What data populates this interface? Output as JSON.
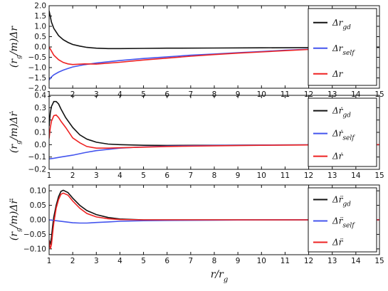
{
  "chart_data": [
    {
      "type": "line",
      "ylabel": "(r_g/m)Δr",
      "xlim": [
        1,
        15
      ],
      "ylim": [
        -2.0,
        2.0
      ],
      "x_ticks": [
        "1",
        "2",
        "3",
        "4",
        "5",
        "6",
        "7",
        "8",
        "9",
        "10",
        "11",
        "12",
        "13",
        "14",
        "15"
      ],
      "y_ticks": [
        "2.0",
        "1.5",
        "1.0",
        "0.5",
        "0.0",
        "−0.5",
        "−1.0",
        "−1.5",
        "−2.0"
      ],
      "legend": [
        "Δr_gd",
        "Δr_self",
        "Δr"
      ],
      "series": [
        {
          "name": "Δr_gd",
          "color": "#111111",
          "x": [
            1.0,
            1.1,
            1.2,
            1.4,
            1.6,
            1.8,
            2.0,
            2.3,
            2.6,
            3.0,
            3.5,
            4,
            5,
            6,
            8,
            10,
            12,
            13,
            15
          ],
          "y": [
            1.75,
            1.2,
            0.9,
            0.55,
            0.35,
            0.22,
            0.12,
            0.04,
            -0.02,
            -0.06,
            -0.08,
            -0.08,
            -0.07,
            -0.06,
            -0.05,
            -0.04,
            -0.03,
            -0.02,
            -0.02
          ]
        },
        {
          "name": "Δr_self",
          "color": "#4455ee",
          "x": [
            1.0,
            1.1,
            1.2,
            1.4,
            1.6,
            1.8,
            2.0,
            2.5,
            3.0,
            4,
            5,
            6,
            7,
            8,
            9,
            10,
            11,
            12,
            12.3
          ],
          "y": [
            -1.6,
            -1.45,
            -1.35,
            -1.22,
            -1.12,
            -1.04,
            -0.97,
            -0.86,
            -0.78,
            -0.66,
            -0.56,
            -0.48,
            -0.4,
            -0.34,
            -0.28,
            -0.22,
            -0.16,
            -0.11,
            -0.09
          ]
        },
        {
          "name": "Δr",
          "color": "#ee2222",
          "x": [
            1.0,
            1.1,
            1.2,
            1.4,
            1.6,
            1.8,
            2.0,
            2.5,
            3.0,
            4,
            5,
            6,
            7,
            8,
            9,
            10,
            11,
            12,
            12.3
          ],
          "y": [
            0.0,
            -0.2,
            -0.4,
            -0.62,
            -0.75,
            -0.82,
            -0.85,
            -0.82,
            -0.83,
            -0.74,
            -0.63,
            -0.54,
            -0.45,
            -0.37,
            -0.3,
            -0.24,
            -0.18,
            -0.12,
            -0.1
          ]
        }
      ]
    },
    {
      "type": "line",
      "ylabel": "(r_g/m)Δṙ",
      "xlim": [
        1,
        15
      ],
      "ylim": [
        -0.2,
        0.4
      ],
      "x_ticks": [
        "1",
        "2",
        "3",
        "4",
        "5",
        "6",
        "7",
        "8",
        "9",
        "10",
        "11",
        "12",
        "13",
        "14",
        "15"
      ],
      "y_ticks": [
        "0.4",
        "0.3",
        "0.2",
        "0.1",
        "0.0",
        "−0.1",
        "−0.2"
      ],
      "legend": [
        "Δṙ_gd",
        "Δṙ_self",
        "Δṙ"
      ],
      "series": [
        {
          "name": "Δṙ_gd",
          "color": "#111111",
          "x": [
            1.0,
            1.05,
            1.1,
            1.2,
            1.3,
            1.4,
            1.5,
            1.7,
            2.0,
            2.3,
            2.6,
            3.0,
            3.5,
            4,
            5,
            6,
            8,
            10,
            12,
            13,
            15
          ],
          "y": [
            0.15,
            0.26,
            0.31,
            0.35,
            0.35,
            0.33,
            0.29,
            0.22,
            0.14,
            0.08,
            0.045,
            0.02,
            0.005,
            0.0,
            -0.005,
            -0.006,
            -0.005,
            -0.003,
            -0.002,
            0.0,
            0.0
          ]
        },
        {
          "name": "Δṙ_self",
          "color": "#4455ee",
          "x": [
            1.0,
            1.2,
            1.5,
            2.0,
            2.5,
            3.0,
            4,
            5,
            6,
            8,
            10,
            12,
            13,
            15
          ],
          "y": [
            -0.115,
            -0.11,
            -0.1,
            -0.085,
            -0.065,
            -0.048,
            -0.028,
            -0.018,
            -0.012,
            -0.006,
            -0.003,
            -0.001,
            0.0,
            0.0
          ]
        },
        {
          "name": "Δṙ",
          "color": "#ee2222",
          "x": [
            1.0,
            1.05,
            1.1,
            1.2,
            1.3,
            1.4,
            1.5,
            1.7,
            2.0,
            2.3,
            2.6,
            3.0,
            3.5,
            4,
            5,
            6,
            8,
            10,
            12,
            13,
            15
          ],
          "y": [
            0.05,
            0.14,
            0.19,
            0.235,
            0.24,
            0.22,
            0.19,
            0.14,
            0.055,
            0.015,
            -0.015,
            -0.028,
            -0.028,
            -0.025,
            -0.02,
            -0.015,
            -0.009,
            -0.005,
            -0.002,
            0.0,
            0.0
          ]
        }
      ]
    },
    {
      "type": "line",
      "ylabel": "(r_g/m)Δr̈",
      "xlabel": "r/r_g",
      "xlim": [
        1,
        15
      ],
      "ylim": [
        -0.12,
        0.12
      ],
      "x_ticks": [
        "1",
        "2",
        "3",
        "4",
        "5",
        "6",
        "7",
        "8",
        "9",
        "10",
        "11",
        "12",
        "13",
        "14",
        "15"
      ],
      "y_ticks": [
        "0.10",
        "0.05",
        "0.00",
        "−0.05",
        "−0.10"
      ],
      "legend": [
        "Δr̈_gd",
        "Δr̈_self",
        "Δr̈"
      ],
      "series": [
        {
          "name": "Δr̈_gd",
          "color": "#111111",
          "x": [
            1.0,
            1.05,
            1.1,
            1.15,
            1.2,
            1.3,
            1.4,
            1.5,
            1.6,
            1.8,
            2.0,
            2.3,
            2.6,
            3.0,
            3.5,
            4,
            5,
            8,
            10,
            15
          ],
          "y": [
            -0.07,
            -0.085,
            -0.06,
            -0.02,
            0.01,
            0.05,
            0.08,
            0.098,
            0.102,
            0.094,
            0.075,
            0.05,
            0.032,
            0.018,
            0.008,
            0.003,
            0.0,
            0.0,
            0.0,
            0.0
          ]
        },
        {
          "name": "Δr̈_self",
          "color": "#4455ee",
          "x": [
            1.0,
            1.3,
            1.6,
            2.0,
            2.3,
            2.6,
            3.0,
            3.5,
            4,
            5,
            6,
            8,
            10,
            12,
            15
          ],
          "y": [
            0.0,
            -0.003,
            -0.006,
            -0.01,
            -0.011,
            -0.011,
            -0.009,
            -0.007,
            -0.005,
            -0.003,
            -0.002,
            -0.001,
            0.0,
            0.0,
            0.0
          ]
        },
        {
          "name": "Δr̈",
          "color": "#ee2222",
          "x": [
            1.0,
            1.05,
            1.1,
            1.15,
            1.2,
            1.3,
            1.4,
            1.5,
            1.6,
            1.8,
            2.0,
            2.3,
            2.6,
            3.0,
            3.5,
            4,
            5,
            8,
            10,
            15
          ],
          "y": [
            -0.07,
            -0.1,
            -0.085,
            -0.045,
            -0.01,
            0.04,
            0.07,
            0.088,
            0.092,
            0.085,
            0.065,
            0.04,
            0.022,
            0.01,
            0.004,
            0.001,
            0.0,
            0.0,
            0.0,
            0.0
          ]
        }
      ]
    }
  ]
}
